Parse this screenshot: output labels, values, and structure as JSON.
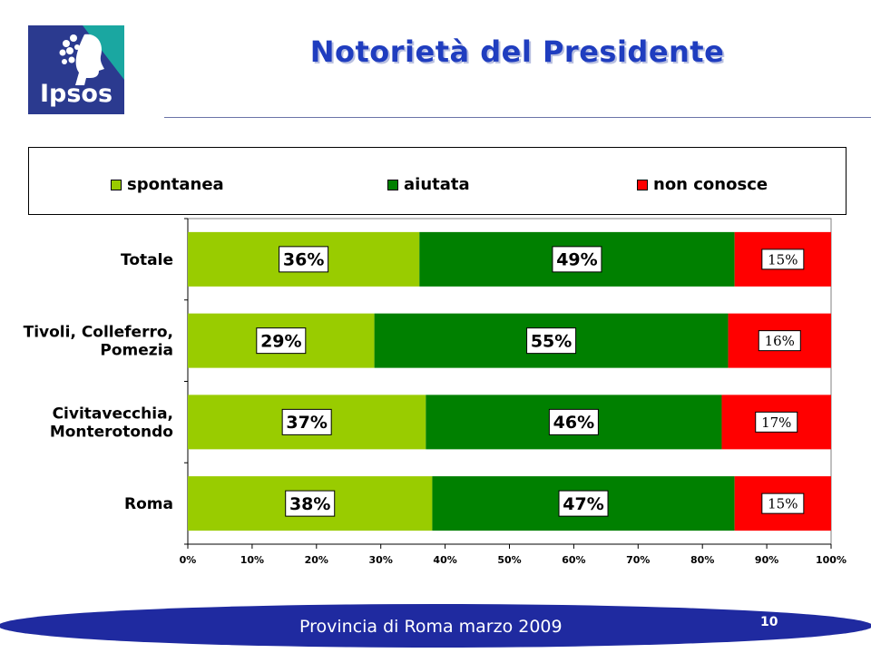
{
  "slide": {
    "title": "Notorietà del Presidente",
    "footer": "Provincia di Roma marzo 2009",
    "page_number": "10"
  },
  "logo": {
    "text": "Ipsos",
    "icon": "ipsos-logo-icon"
  },
  "colors": {
    "spontanea": "#99cc00",
    "aiutata": "#008000",
    "non_conosce": "#ff0000",
    "title": "#1f3dbf",
    "footer_band": "#1f2aa0",
    "logo_blue": "#2b3a8f",
    "logo_teal": "#1aa7a1"
  },
  "chart_data": {
    "type": "bar",
    "orientation": "horizontal",
    "stacked": true,
    "categories": [
      "Totale",
      "Tivoli, Colleferro, Pomezia",
      "Civitavecchia, Monterotondo",
      "Roma"
    ],
    "category_lines": [
      [
        "Totale"
      ],
      [
        "Tivoli, Colleferro,",
        "Pomezia"
      ],
      [
        "Civitavecchia,",
        "Monterotondo"
      ],
      [
        "Roma"
      ]
    ],
    "series": [
      {
        "name": "spontanea",
        "values": [
          36,
          29,
          37,
          38
        ],
        "labels": [
          "36%",
          "29%",
          "37%",
          "38%"
        ]
      },
      {
        "name": "aiutata",
        "values": [
          49,
          55,
          46,
          47
        ],
        "labels": [
          "49%",
          "55%",
          "46%",
          "47%"
        ]
      },
      {
        "name": "non conosce",
        "values": [
          15,
          16,
          17,
          15
        ],
        "labels": [
          "15%",
          "16%",
          "17%",
          "15%"
        ]
      }
    ],
    "xlim": [
      0,
      100
    ],
    "x_ticks": [
      "0%",
      "10%",
      "20%",
      "30%",
      "40%",
      "50%",
      "60%",
      "70%",
      "80%",
      "90%",
      "100%"
    ],
    "legend_placement": "top",
    "grid": false
  }
}
